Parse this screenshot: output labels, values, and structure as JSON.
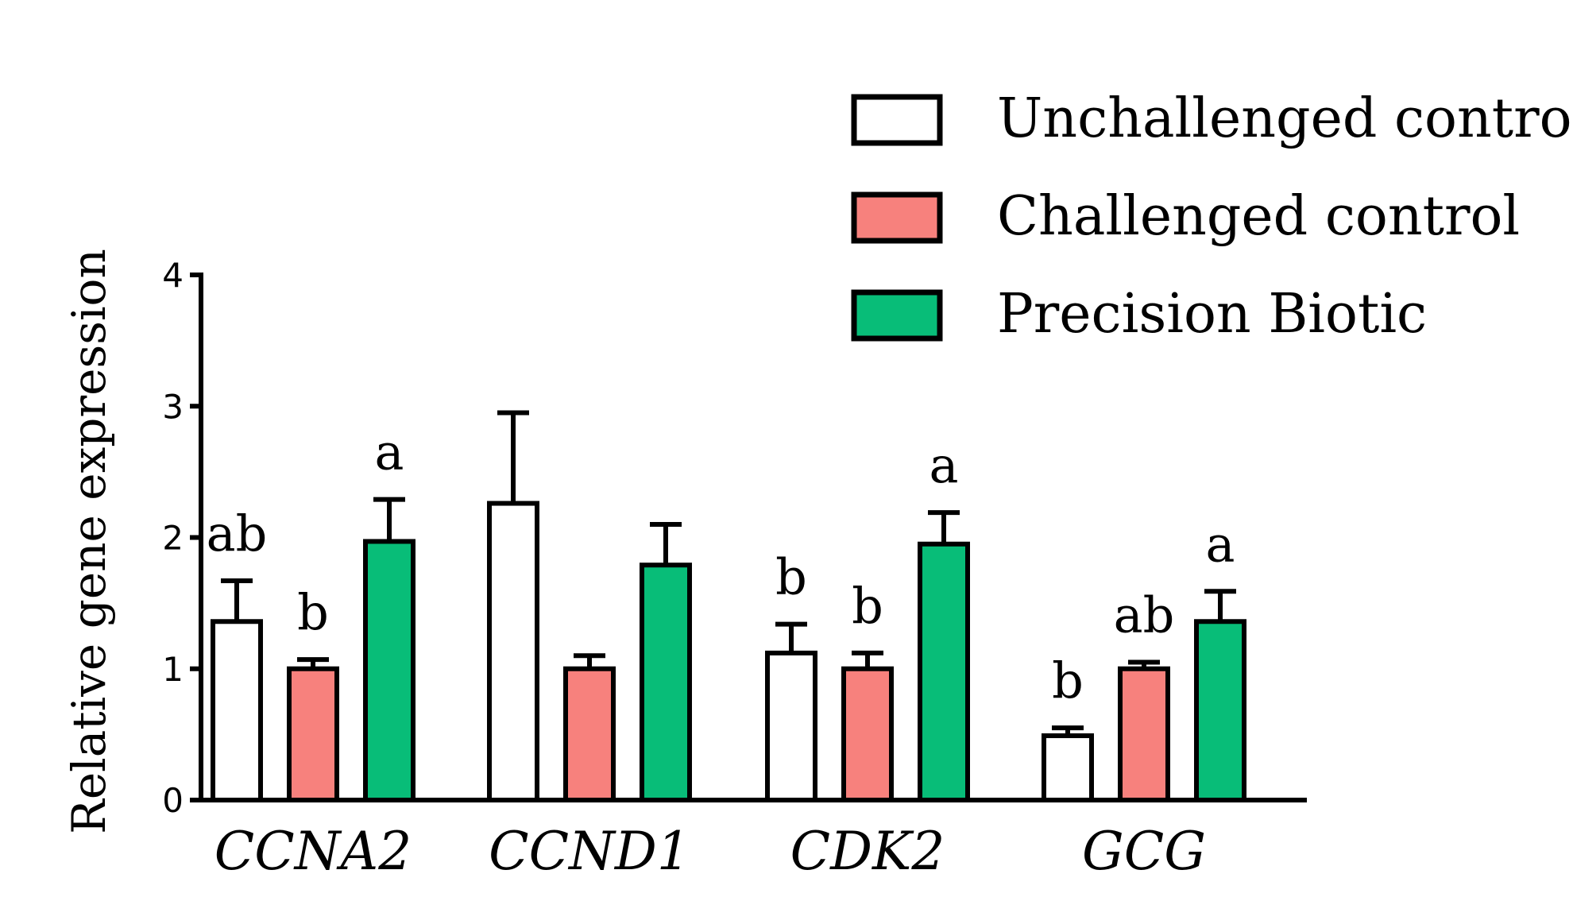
{
  "chart_data": {
    "type": "bar",
    "title": "",
    "xlabel": "",
    "ylabel": "Relative gene expression",
    "ylim": [
      0,
      4
    ],
    "yticks": [
      0,
      1,
      2,
      3,
      4
    ],
    "grid": false,
    "legend_position": "top-right",
    "categories": [
      "CCNA2",
      "CCND1",
      "CDK2",
      "GCG"
    ],
    "series": [
      {
        "name": "Unchallenged control",
        "color": "#ffffff",
        "values": [
          1.36,
          2.26,
          1.12,
          0.49
        ],
        "errors": [
          0.31,
          0.69,
          0.22,
          0.06
        ],
        "letters": [
          "ab",
          "",
          "b",
          "b"
        ]
      },
      {
        "name": "Challenged control",
        "color": "#f7817d",
        "values": [
          1.0,
          1.0,
          1.0,
          1.0
        ],
        "errors": [
          0.07,
          0.1,
          0.12,
          0.05
        ],
        "letters": [
          "b",
          "",
          "b",
          "ab"
        ]
      },
      {
        "name": "Precision Biotic",
        "color": "#08bd78",
        "values": [
          1.97,
          1.79,
          1.95,
          1.36
        ],
        "errors": [
          0.32,
          0.31,
          0.24,
          0.23
        ],
        "letters": [
          "a",
          "",
          "a",
          "a"
        ]
      }
    ]
  }
}
